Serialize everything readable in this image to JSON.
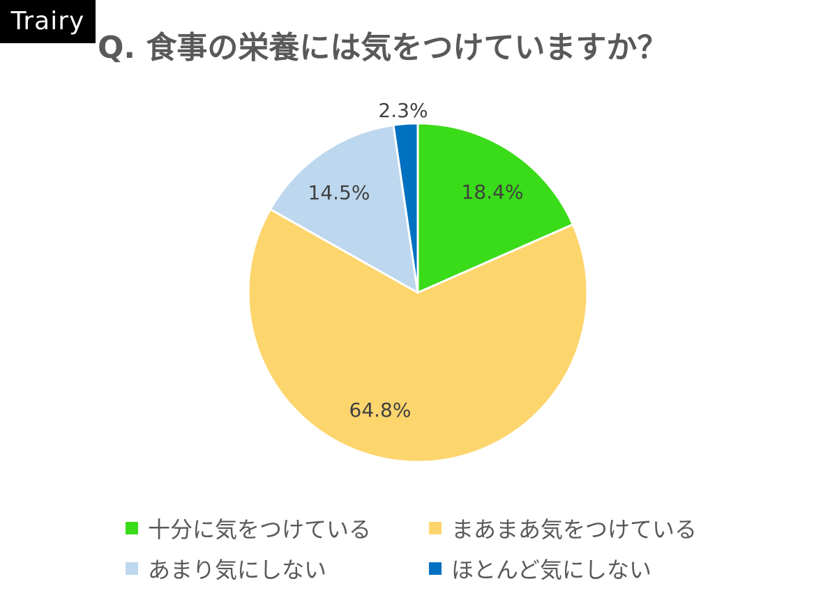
{
  "brand": {
    "label": "Trairy"
  },
  "title": "Q. 食事の栄養には気をつけていますか？",
  "colors": {
    "sufficient": "#3ADB18",
    "fairly": "#FDD56D",
    "not_much": "#BDD7EE",
    "hardly": "#0070C0",
    "title_text": "#595959",
    "label_text": "#404040",
    "separator": "#FFFFFF"
  },
  "chart_data": {
    "type": "pie",
    "start_angle_deg": 0,
    "direction": "clockwise",
    "slices": [
      {
        "name": "十分に気をつけている",
        "value": 18.4,
        "label": "18.4%",
        "color": "#3ADB18"
      },
      {
        "name": "まあまあ気をつけている",
        "value": 64.8,
        "label": "64.8%",
        "color": "#FDD56D"
      },
      {
        "name": "あまり気にしない",
        "value": 14.5,
        "label": "14.5%",
        "color": "#BDD7EE"
      },
      {
        "name": "ほとんど気にしない",
        "value": 2.3,
        "label": "2.3%",
        "color": "#0070C0"
      }
    ],
    "legend_position": "bottom"
  }
}
